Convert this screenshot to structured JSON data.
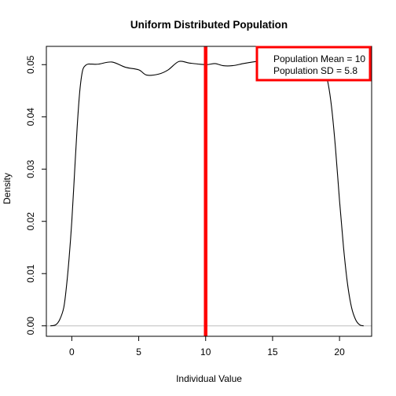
{
  "chart_data": {
    "type": "line",
    "title": "Uniform Distributed Population",
    "xlabel": "Individual Value",
    "ylabel": "Density",
    "xlim": [
      -1.9,
      22.4
    ],
    "ylim": [
      -0.002,
      0.0535
    ],
    "x_ticks": [
      0,
      5,
      10,
      15,
      20
    ],
    "x_tick_labels": [
      "0",
      "5",
      "10",
      "15",
      "20"
    ],
    "y_ticks": [
      0.0,
      0.01,
      0.02,
      0.03,
      0.04,
      0.05
    ],
    "y_tick_labels": [
      "0.00",
      "0.01",
      "0.02",
      "0.03",
      "0.04",
      "0.05"
    ],
    "grid": false,
    "baseline": {
      "y": 0,
      "color": "#bebebe"
    },
    "series": [
      {
        "color": "#000000",
        "x": [
          -1.6,
          -1.2,
          -0.9,
          -0.6,
          -0.4,
          -0.2,
          0,
          0.2,
          0.4,
          0.6,
          0.8,
          1.0,
          1.2,
          1.5,
          2.0,
          3.0,
          4.0,
          5.0,
          5.6,
          6.5,
          7.2,
          8.0,
          8.8,
          10.0,
          10.7,
          11.3,
          12.0,
          12.8,
          13.5,
          14.5,
          15.5,
          16.5,
          17.5,
          18.3,
          18.8,
          19.1,
          19.4,
          19.7,
          20.0,
          20.3,
          20.6,
          20.9,
          21.2,
          21.5,
          21.8
        ],
        "y": [
          0.0,
          0.0002,
          0.0012,
          0.0035,
          0.0075,
          0.013,
          0.02,
          0.029,
          0.038,
          0.045,
          0.0488,
          0.0498,
          0.0501,
          0.0501,
          0.0501,
          0.0505,
          0.0495,
          0.049,
          0.048,
          0.0482,
          0.049,
          0.0506,
          0.0503,
          0.05,
          0.0502,
          0.0498,
          0.0498,
          0.0502,
          0.0505,
          0.0508,
          0.0509,
          0.0507,
          0.0503,
          0.05,
          0.049,
          0.047,
          0.042,
          0.034,
          0.024,
          0.015,
          0.008,
          0.0035,
          0.0012,
          0.0002,
          0.0
        ]
      }
    ],
    "reference_line": {
      "x": 10,
      "color": "#ff0000",
      "orientation": "vertical"
    },
    "legend": {
      "position": "top-right",
      "border_color": "#ff0000",
      "entries": [
        "Population Mean = 10",
        "Population SD = 5.8"
      ]
    }
  }
}
